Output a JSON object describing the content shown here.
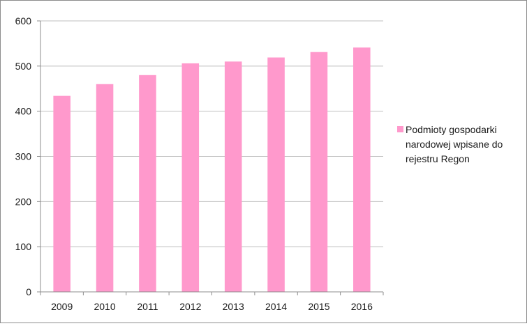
{
  "chart_data": {
    "type": "bar",
    "categories": [
      "2009",
      "2010",
      "2011",
      "2012",
      "2013",
      "2014",
      "2015",
      "2016"
    ],
    "series": [
      {
        "name": "Podmioty gospodarki narodowej wpisane do rejestru Regon",
        "values": [
          434,
          460,
          480,
          506,
          510,
          519,
          531,
          541
        ],
        "color": "#ff99cc"
      }
    ],
    "yticks": [
      "0",
      "100",
      "200",
      "300",
      "400",
      "500",
      "600"
    ],
    "ylim": [
      0,
      600
    ],
    "grid": true,
    "legend_position": "right",
    "title": "",
    "xlabel": "",
    "ylabel": ""
  }
}
